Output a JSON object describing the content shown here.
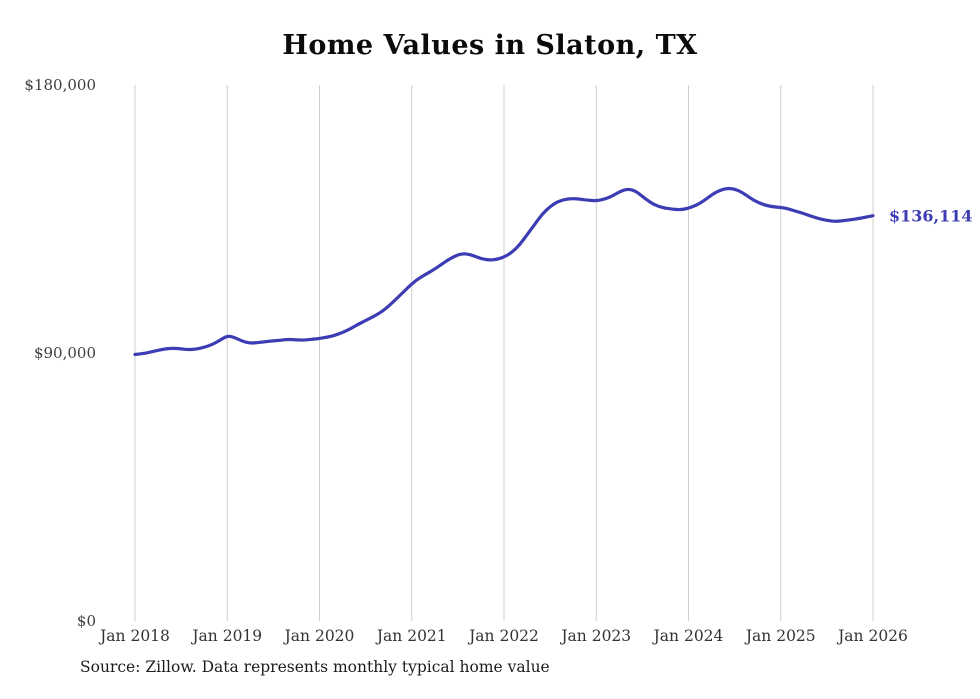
{
  "title": "Home Values in Slaton, TX",
  "source_note": "Source: Zillow. Data represents monthly typical home value",
  "chart_data": {
    "type": "line",
    "title": "Home Values in Slaton, TX",
    "series_name": "Monthly typical home value",
    "frequency": "monthly",
    "x_start": "Jan 2018",
    "x_end": "Jan 2026",
    "x_tick_labels": [
      "Jan 2018",
      "Jan 2019",
      "Jan 2020",
      "Jan 2021",
      "Jan 2022",
      "Jan 2023",
      "Jan 2024",
      "Jan 2025",
      "Jan 2026"
    ],
    "y_ticks": [
      {
        "value": 0,
        "label": "$0"
      },
      {
        "value": 90000,
        "label": "$90,000"
      },
      {
        "value": 180000,
        "label": "$180,000"
      }
    ],
    "ylim": [
      0,
      180000
    ],
    "grid": "vertical-only",
    "legend": "none",
    "end_label": "$136,114",
    "end_value": 136114,
    "line_color": "#3c3cb4",
    "grid_color": "#cfcfcf",
    "values": [
      89500,
      89800,
      90300,
      90900,
      91400,
      91600,
      91400,
      91100,
      91300,
      91900,
      92800,
      94200,
      95800,
      95200,
      93900,
      93300,
      93500,
      93800,
      94100,
      94300,
      94600,
      94400,
      94300,
      94600,
      94900,
      95300,
      95900,
      96900,
      98100,
      99600,
      100900,
      102200,
      103700,
      105700,
      108200,
      110700,
      113200,
      115200,
      116700,
      118200,
      120000,
      121700,
      123000,
      123400,
      122700,
      121700,
      121200,
      121400,
      122200,
      123700,
      126200,
      129700,
      133200,
      136700,
      139200,
      140900,
      141600,
      141900,
      141600,
      141300,
      141100,
      141600,
      142600,
      144100,
      145100,
      144600,
      142600,
      140600,
      139300,
      138600,
      138300,
      138100,
      138600,
      139600,
      141100,
      143100,
      144600,
      145300,
      145100,
      143900,
      142100,
      140600,
      139600,
      139100,
      138900,
      138400,
      137600,
      136800,
      135900,
      135100,
      134500,
      134200,
      134400,
      134700,
      135100,
      135600,
      136114
    ]
  }
}
